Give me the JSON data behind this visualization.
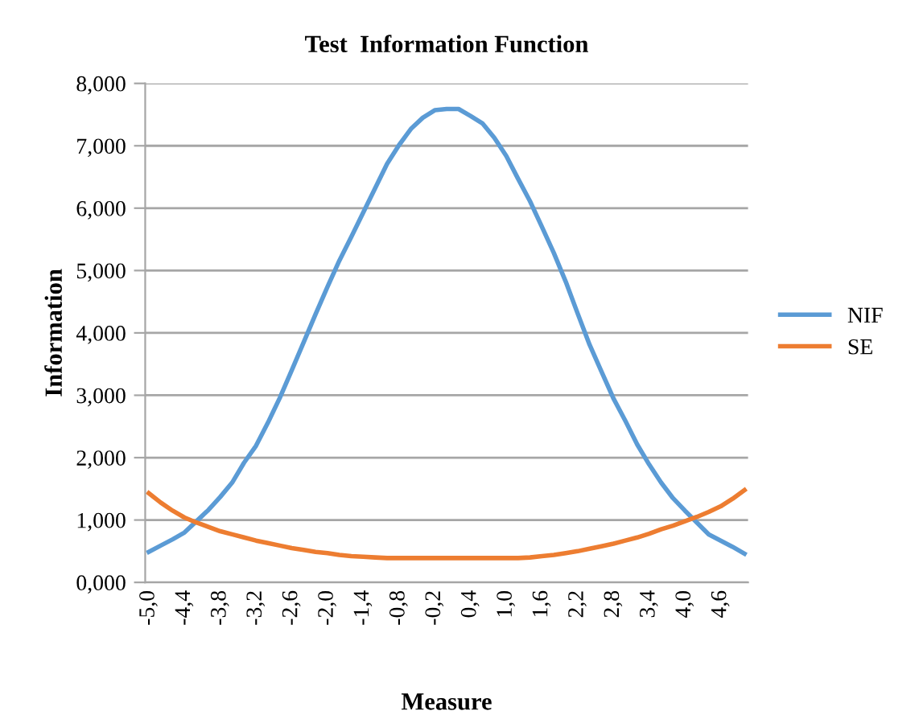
{
  "chart_data": {
    "type": "line",
    "title": "Test  Information Function",
    "xlabel": "Measure",
    "ylabel": "Information",
    "categories": [
      "-5,0",
      null,
      null,
      "-4,4",
      null,
      null,
      "-3,8",
      null,
      null,
      "-3,2",
      null,
      null,
      "-2,6",
      null,
      null,
      "-2,0",
      null,
      null,
      "-1,4",
      null,
      null,
      "-0,8",
      null,
      null,
      "-0,2",
      null,
      null,
      "0,4",
      null,
      null,
      "1,0",
      null,
      null,
      "1,6",
      null,
      null,
      "2,2",
      null,
      null,
      "2,8",
      null,
      null,
      "3,4",
      null,
      null,
      "4,0",
      null,
      null,
      "4,6",
      null,
      null
    ],
    "series": [
      {
        "name": "NIF",
        "color": "#5b9bd5",
        "values": [
          0.49,
          0.59,
          0.69,
          0.8,
          0.98,
          1.16,
          1.37,
          1.6,
          1.92,
          2.19,
          2.56,
          2.96,
          3.4,
          3.85,
          4.3,
          4.74,
          5.16,
          5.54,
          5.93,
          6.32,
          6.71,
          7.01,
          7.27,
          7.45,
          7.57,
          7.59,
          7.59,
          7.48,
          7.36,
          7.13,
          6.84,
          6.47,
          6.11,
          5.7,
          5.28,
          4.82,
          4.31,
          3.81,
          3.38,
          2.95,
          2.59,
          2.21,
          1.89,
          1.6,
          1.35,
          1.15,
          0.96,
          0.77,
          0.67,
          0.57,
          0.46
        ]
      },
      {
        "name": "SE",
        "color": "#ed7d31",
        "values": [
          1.43,
          1.28,
          1.15,
          1.04,
          0.96,
          0.89,
          0.82,
          0.77,
          0.72,
          0.67,
          0.63,
          0.59,
          0.55,
          0.52,
          0.49,
          0.47,
          0.44,
          0.42,
          0.41,
          0.4,
          0.39,
          0.39,
          0.39,
          0.39,
          0.39,
          0.39,
          0.39,
          0.39,
          0.39,
          0.39,
          0.39,
          0.39,
          0.4,
          0.42,
          0.44,
          0.47,
          0.5,
          0.54,
          0.58,
          0.62,
          0.67,
          0.72,
          0.78,
          0.85,
          0.91,
          0.98,
          1.05,
          1.13,
          1.22,
          1.34,
          1.48
        ]
      }
    ],
    "ylim": [
      0,
      8
    ],
    "yticks": [
      {
        "value": 0,
        "label": "0,000"
      },
      {
        "value": 1,
        "label": "1,000"
      },
      {
        "value": 2,
        "label": "2,000"
      },
      {
        "value": 3,
        "label": "3,000"
      },
      {
        "value": 4,
        "label": "4,000"
      },
      {
        "value": 5,
        "label": "5,000"
      },
      {
        "value": 6,
        "label": "6,000"
      },
      {
        "value": 7,
        "label": "7,000"
      },
      {
        "value": 8,
        "label": "8,000"
      }
    ],
    "grid": "y",
    "legend": "right",
    "marker": "none",
    "line_style": "solid"
  }
}
